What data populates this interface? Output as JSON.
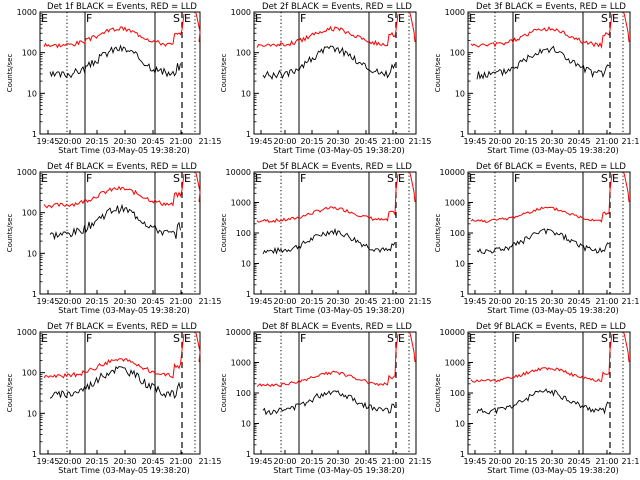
{
  "chart_data": [
    {
      "type": "line",
      "title": "Det 1f BLACK = Events, RED = LLD",
      "ylabel": "Counts/sec",
      "xlabel": "Start Time (03-May-05 19:38:20)",
      "yscale": "log",
      "ylim": [
        1,
        1000
      ],
      "yticks": [
        "1",
        "10",
        "100",
        "1000"
      ],
      "xticks": [
        "19:45",
        "20:00",
        "20:15",
        "20:30",
        "20:45",
        "21:00",
        "21:15"
      ],
      "annotations": [
        "E",
        "F",
        "S",
        "E"
      ],
      "legend": "none",
      "series": [
        {
          "color": "#ff0000"
        },
        {
          "color": "#000000"
        }
      ]
    },
    {
      "type": "line",
      "title": "Det 2f BLACK = Events, RED = LLD",
      "ylabel": "Counts/sec",
      "xlabel": "Start Time (03-May-05 19:38:20)",
      "yscale": "log",
      "ylim": [
        1,
        1000
      ],
      "yticks": [
        "1",
        "10",
        "100",
        "1000"
      ],
      "xticks": [
        "19:45",
        "20:00",
        "20:15",
        "20:30",
        "20:45",
        "21:00",
        "21:15"
      ],
      "annotations": [
        "E",
        "F",
        "S",
        "E"
      ],
      "legend": "none",
      "series": [
        {
          "color": "#ff0000"
        },
        {
          "color": "#000000"
        }
      ]
    },
    {
      "type": "line",
      "title": "Det 3f BLACK = Events, RED = LLD",
      "ylabel": "Counts/sec",
      "xlabel": "Start Time (03-May-05 19:38:20)",
      "yscale": "log",
      "ylim": [
        1,
        1000
      ],
      "yticks": [
        "1",
        "10",
        "100",
        "1000"
      ],
      "xticks": [
        "19:45",
        "20:00",
        "20:15",
        "20:30",
        "20:45",
        "21:00",
        "21:15"
      ],
      "annotations": [
        "E",
        "F",
        "S",
        "E"
      ],
      "legend": "none",
      "series": [
        {
          "color": "#ff0000"
        },
        {
          "color": "#000000"
        }
      ]
    },
    {
      "type": "line",
      "title": "Det 4f BLACK = Events, RED = LLD",
      "ylabel": "Counts/sec",
      "xlabel": "Start Time (03-May-05 19:38:20)",
      "yscale": "log",
      "ylim": [
        1,
        1000
      ],
      "yticks": [
        "1",
        "10",
        "100",
        "1000"
      ],
      "xticks": [
        "19:45",
        "20:00",
        "20:15",
        "20:30",
        "20:45",
        "21:00",
        "21:15"
      ],
      "annotations": [
        "E",
        "F",
        "S",
        "E"
      ],
      "legend": "none",
      "series": [
        {
          "color": "#ff0000"
        },
        {
          "color": "#000000"
        }
      ]
    },
    {
      "type": "line",
      "title": "Det 5f BLACK = Events, RED = LLD",
      "ylabel": "Counts/sec",
      "xlabel": "Start Time (03-May-05 19:38:20)",
      "yscale": "log",
      "ylim": [
        1,
        10000
      ],
      "yticks": [
        "1",
        "10",
        "100",
        "1000",
        "10000"
      ],
      "xticks": [
        "19:45",
        "20:00",
        "20:15",
        "20:30",
        "20:45",
        "21:00",
        "21:15"
      ],
      "annotations": [
        "E",
        "F",
        "S",
        "E"
      ],
      "legend": "none",
      "series": [
        {
          "color": "#ff0000"
        },
        {
          "color": "#000000"
        }
      ]
    },
    {
      "type": "line",
      "title": "Det 6f BLACK = Events, RED = LLD",
      "ylabel": "Counts/sec",
      "xlabel": "Start Time (03-May-05 19:38:20)",
      "yscale": "log",
      "ylim": [
        1,
        10000
      ],
      "yticks": [
        "1",
        "10",
        "100",
        "1000",
        "10000"
      ],
      "xticks": [
        "19:45",
        "20:00",
        "20:15",
        "20:30",
        "20:45",
        "21:00",
        "21:15"
      ],
      "annotations": [
        "E",
        "F",
        "S",
        "E"
      ],
      "legend": "none",
      "series": [
        {
          "color": "#ff0000"
        },
        {
          "color": "#000000"
        }
      ]
    },
    {
      "type": "line",
      "title": "Det 7f BLACK = Events, RED = LLD",
      "ylabel": "Counts/sec",
      "xlabel": "Start Time (03-May-05 19:38:20)",
      "yscale": "log",
      "ylim": [
        1,
        1000
      ],
      "yticks": [
        "1",
        "10",
        "100",
        "1000"
      ],
      "xticks": [
        "19:45",
        "20:00",
        "20:15",
        "20:30",
        "20:45",
        "21:00",
        "21:15"
      ],
      "annotations": [
        "E",
        "F",
        "S",
        "E"
      ],
      "legend": "none",
      "series": [
        {
          "color": "#ff0000"
        },
        {
          "color": "#000000"
        }
      ]
    },
    {
      "type": "line",
      "title": "Det 8f BLACK = Events, RED = LLD",
      "ylabel": "Counts/sec",
      "xlabel": "Start Time (03-May-05 19:38:20)",
      "yscale": "log",
      "ylim": [
        1,
        10000
      ],
      "yticks": [
        "1",
        "10",
        "100",
        "1000",
        "10000"
      ],
      "xticks": [
        "19:45",
        "20:00",
        "20:15",
        "20:30",
        "20:45",
        "21:00",
        "21:15"
      ],
      "annotations": [
        "E",
        "F",
        "S",
        "E"
      ],
      "legend": "none",
      "series": [
        {
          "color": "#ff0000"
        },
        {
          "color": "#000000"
        }
      ]
    },
    {
      "type": "line",
      "title": "Det 9f BLACK = Events, RED = LLD",
      "ylabel": "Counts/sec",
      "xlabel": "Start Time (03-May-05 19:38:20)",
      "yscale": "log",
      "ylim": [
        1,
        10000
      ],
      "yticks": [
        "1",
        "10",
        "100",
        "1000",
        "10000"
      ],
      "xticks": [
        "19:45",
        "20:00",
        "20:15",
        "20:30",
        "20:45",
        "21:00",
        "21:15"
      ],
      "annotations": [
        "E",
        "F",
        "S",
        "E"
      ],
      "legend": "none",
      "series": [
        {
          "color": "#ff0000"
        },
        {
          "color": "#000000"
        }
      ]
    }
  ]
}
